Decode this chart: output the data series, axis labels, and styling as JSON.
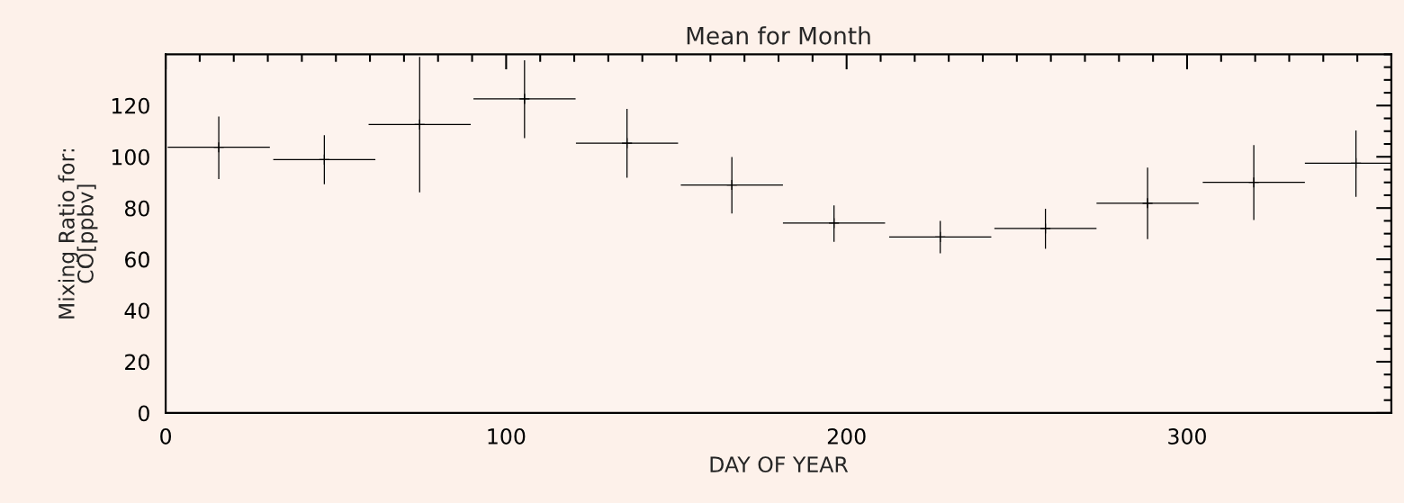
{
  "chart_data": {
    "type": "scatter",
    "title": "Mean for Month",
    "xlabel": "DAY OF YEAR",
    "ylabel": "Mixing Ratio for:\nCO[ppbv]",
    "x": [
      15.6,
      46.6,
      74.6,
      105.4,
      135.5,
      166.3,
      196.3,
      227.5,
      258.4,
      288.4,
      319.6,
      349.6
    ],
    "series": [
      {
        "color": "#000000",
        "values": [
          103.7,
          98.9,
          112.6,
          122.6,
          105.3,
          89.0,
          74.1,
          68.7,
          72.0,
          81.9,
          90.0,
          97.5
        ],
        "errors": [
          [
            91.3,
            115.7
          ],
          [
            89.3,
            108.4
          ],
          [
            86.1,
            139
          ],
          [
            107.3,
            137.7
          ],
          [
            91.8,
            118.7
          ],
          [
            77.9,
            99.9
          ],
          [
            66.8,
            81.0
          ],
          [
            62.3,
            75.0
          ],
          [
            64.1,
            79.7
          ],
          [
            67.9,
            95.8
          ],
          [
            75.3,
            104.6
          ],
          [
            84.4,
            110.3
          ]
        ],
        "xerrors": [
          15,
          15,
          15,
          15,
          15,
          15,
          15,
          15,
          15,
          15,
          15,
          15
        ]
      }
    ],
    "marker": "cross",
    "xlim": [
      0,
      360
    ],
    "ylim": [
      0,
      140
    ],
    "xticks": [
      0,
      100,
      200,
      300
    ],
    "yticks": [
      0,
      20,
      40,
      60,
      80,
      100,
      120
    ],
    "grid": false,
    "legend": false
  }
}
